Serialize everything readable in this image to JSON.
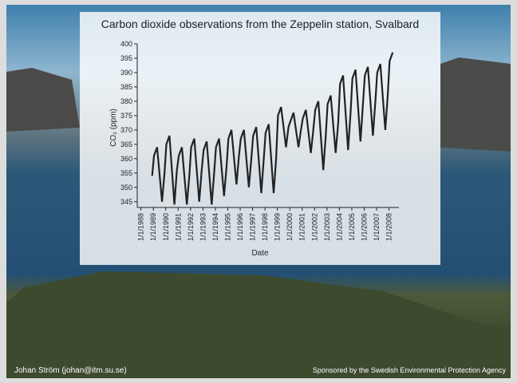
{
  "chart_data": {
    "type": "line",
    "title": "Carbon dioxide observations from the Zeppelin station, Svalbard",
    "x_label": "Date",
    "y_label": "CO₂ (ppm)",
    "color": "#222222",
    "grid": false,
    "xlim": [
      1987.7,
      2008.8
    ],
    "xticks": [
      {
        "value": 1988,
        "label": "1/1/1988"
      },
      {
        "value": 1989,
        "label": "1/1/1989"
      },
      {
        "value": 1990,
        "label": "1/1/1990"
      },
      {
        "value": 1991,
        "label": "1/1/1991"
      },
      {
        "value": 1992,
        "label": "1/1/1992"
      },
      {
        "value": 1993,
        "label": "1/1/1993"
      },
      {
        "value": 1994,
        "label": "1/1/1994"
      },
      {
        "value": 1995,
        "label": "1/1/1995"
      },
      {
        "value": 1996,
        "label": "1/1/1996"
      },
      {
        "value": 1997,
        "label": "1/1/1997"
      },
      {
        "value": 1998,
        "label": "1/1/1998"
      },
      {
        "value": 1999,
        "label": "1/1/1999"
      },
      {
        "value": 2000,
        "label": "1/1/2000"
      },
      {
        "value": 2001,
        "label": "1/1/2001"
      },
      {
        "value": 2002,
        "label": "1/1/2002"
      },
      {
        "value": 2003,
        "label": "1/1/2003"
      },
      {
        "value": 2004,
        "label": "1/1/2004"
      },
      {
        "value": 2005,
        "label": "1/1/2005"
      },
      {
        "value": 2006,
        "label": "1/1/2006"
      },
      {
        "value": 2007,
        "label": "1/1/2007"
      },
      {
        "value": 2008,
        "label": "1/1/2008"
      }
    ],
    "ylim": [
      343,
      400
    ],
    "yticks": [
      345,
      350,
      355,
      360,
      365,
      370,
      375,
      380,
      385,
      390,
      395,
      400
    ],
    "x": [
      1988.9,
      1989.05,
      1989.3,
      1989.7,
      1989.9,
      1990.05,
      1990.3,
      1990.7,
      1990.9,
      1991.05,
      1991.3,
      1991.7,
      1991.9,
      1992.05,
      1992.3,
      1992.7,
      1992.9,
      1993.05,
      1993.3,
      1993.7,
      1993.9,
      1994.05,
      1994.3,
      1994.7,
      1994.9,
      1995.05,
      1995.3,
      1995.7,
      1995.9,
      1996.05,
      1996.3,
      1996.7,
      1996.9,
      1997.05,
      1997.3,
      1997.7,
      1997.9,
      1998.05,
      1998.3,
      1998.7,
      1998.9,
      1999.05,
      1999.3,
      1999.7,
      1999.9,
      2000.05,
      2000.3,
      2000.7,
      2000.9,
      2001.05,
      2001.3,
      2001.7,
      2001.9,
      2002.05,
      2002.3,
      2002.7,
      2002.9,
      2003.05,
      2003.3,
      2003.7,
      2003.9,
      2004.05,
      2004.3,
      2004.7,
      2004.9,
      2005.05,
      2005.3,
      2005.7,
      2005.9,
      2006.05,
      2006.3,
      2006.7,
      2006.9,
      2007.05,
      2007.3,
      2007.7,
      2007.9,
      2008.05,
      2008.3
    ],
    "values": [
      354,
      361,
      364,
      345,
      355,
      365,
      368,
      344,
      356,
      361,
      364,
      344,
      354,
      364,
      367,
      345,
      356,
      363,
      366,
      344,
      355,
      364,
      367,
      347,
      357,
      367,
      370,
      351,
      361,
      367,
      370,
      350,
      360,
      368,
      371,
      348,
      360,
      369,
      372,
      348,
      360,
      375,
      378,
      364,
      371,
      373,
      376,
      364,
      370,
      374,
      377,
      362,
      370,
      377,
      380,
      356,
      368,
      379,
      382,
      362,
      372,
      386,
      389,
      363,
      376,
      388,
      391,
      366,
      379,
      389,
      392,
      368,
      380,
      390,
      393,
      370,
      382,
      394,
      397
    ]
  },
  "footer": {
    "author": "Johan Ström (johan@itm.su.se)",
    "sponsor": "Sponsored by the Swedish Environmental Protection Agency"
  }
}
